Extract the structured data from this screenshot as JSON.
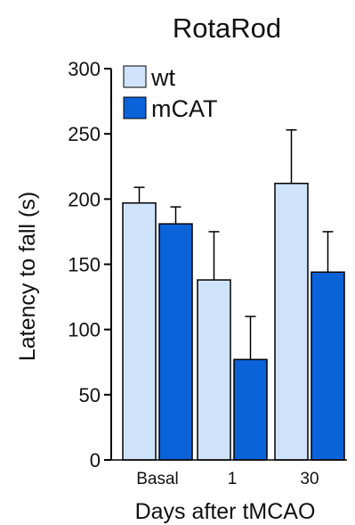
{
  "chart_data": {
    "type": "bar",
    "title": "RotaRod",
    "xlabel": "Days after tMCAO",
    "ylabel": "Latency to fall (s)",
    "categories": [
      "Basal",
      "1",
      "30"
    ],
    "ylim": [
      0,
      300
    ],
    "yticks": [
      0,
      50,
      100,
      150,
      200,
      250,
      300
    ],
    "grid": false,
    "legend_position": "top-left",
    "series": [
      {
        "name": "wt",
        "color": "#cfe4fb",
        "values": [
          197,
          138,
          212
        ],
        "errors": [
          12,
          37,
          41
        ]
      },
      {
        "name": "mCAT",
        "color": "#0a63d9",
        "values": [
          181,
          77,
          144
        ],
        "errors": [
          13,
          33,
          31
        ]
      }
    ]
  }
}
